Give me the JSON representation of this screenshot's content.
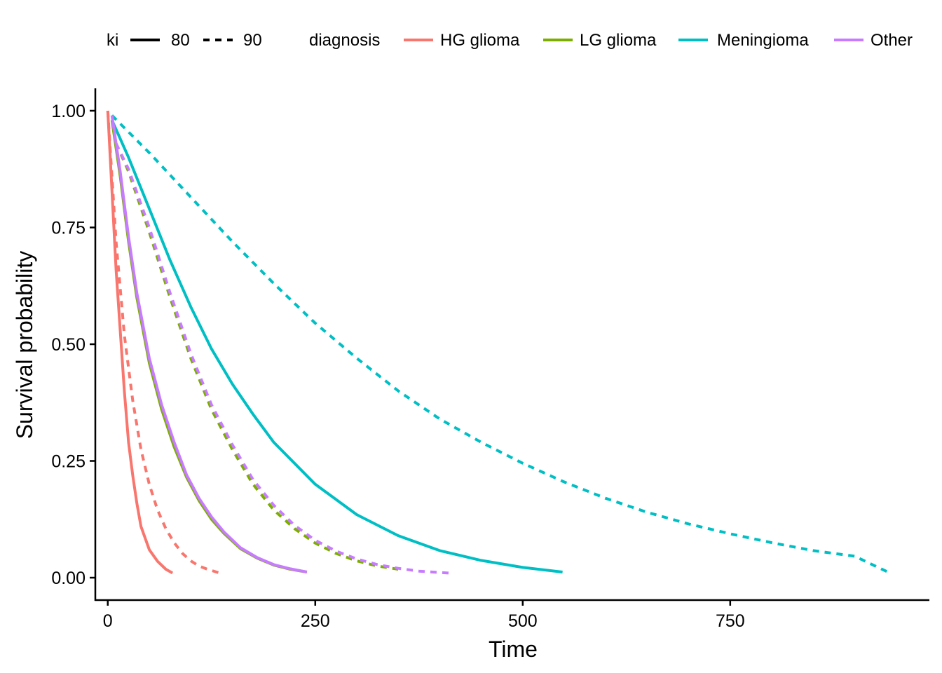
{
  "chart_data": {
    "type": "line",
    "xlabel": "Time",
    "ylabel": "Survival probability",
    "xlim": [
      -15,
      990
    ],
    "ylim": [
      -0.048,
      1.048
    ],
    "x_ticks": [
      0,
      250,
      500,
      750
    ],
    "x_tick_labels": [
      "0",
      "250",
      "500",
      "750"
    ],
    "y_ticks": [
      0,
      0.25,
      0.5,
      0.75,
      1
    ],
    "y_tick_labels": [
      "0.00",
      "0.25",
      "0.50",
      "0.75",
      "1.00"
    ],
    "grid": false,
    "legend_position": "top",
    "legend": {
      "ki": {
        "title": "ki",
        "items": [
          {
            "label": "80",
            "linetype": "solid"
          },
          {
            "label": "90",
            "linetype": "dashed"
          }
        ]
      },
      "diagnosis": {
        "title": "diagnosis",
        "items": [
          {
            "label": "HG glioma",
            "color": "#F8766D"
          },
          {
            "label": "LG glioma",
            "color": "#7CAE00"
          },
          {
            "label": "Meningioma",
            "color": "#00BFC4"
          },
          {
            "label": "Other",
            "color": "#C77CFF"
          }
        ]
      }
    },
    "series": [
      {
        "diagnosis": "HG glioma",
        "ki": "80",
        "color": "#F8766D",
        "linetype": "solid",
        "x": [
          0,
          5,
          10,
          15,
          20,
          25,
          30,
          35,
          40,
          50,
          60,
          70,
          78
        ],
        "y": [
          1.0,
          0.83,
          0.66,
          0.53,
          0.4,
          0.29,
          0.22,
          0.16,
          0.11,
          0.06,
          0.035,
          0.018,
          0.01
        ]
      },
      {
        "diagnosis": "HG glioma",
        "ki": "90",
        "color": "#F8766D",
        "linetype": "dashed",
        "x": [
          0,
          10,
          20,
          30,
          40,
          50,
          60,
          70,
          80,
          90,
          100,
          110,
          120,
          135
        ],
        "y": [
          1.0,
          0.72,
          0.52,
          0.38,
          0.275,
          0.2,
          0.145,
          0.105,
          0.075,
          0.052,
          0.036,
          0.025,
          0.018,
          0.01
        ]
      },
      {
        "diagnosis": "LG glioma",
        "ki": "80",
        "color": "#7CAE00",
        "linetype": "solid",
        "x": [
          5,
          15,
          25,
          35,
          50,
          65,
          80,
          95,
          110,
          125,
          140,
          160,
          180,
          200,
          220,
          240
        ],
        "y": [
          0.98,
          0.86,
          0.72,
          0.6,
          0.46,
          0.36,
          0.28,
          0.215,
          0.165,
          0.125,
          0.095,
          0.062,
          0.042,
          0.027,
          0.018,
          0.012
        ]
      },
      {
        "diagnosis": "LG glioma",
        "ki": "90",
        "color": "#7CAE00",
        "linetype": "dashed",
        "x": [
          10,
          25,
          50,
          75,
          100,
          125,
          150,
          175,
          200,
          225,
          250,
          275,
          300,
          325,
          350
        ],
        "y": [
          0.93,
          0.87,
          0.74,
          0.6,
          0.47,
          0.36,
          0.275,
          0.2,
          0.145,
          0.105,
          0.074,
          0.052,
          0.036,
          0.025,
          0.018
        ]
      },
      {
        "diagnosis": "Meningioma",
        "ki": "80",
        "color": "#00BFC4",
        "linetype": "solid",
        "x": [
          5,
          25,
          50,
          75,
          100,
          125,
          150,
          175,
          200,
          250,
          300,
          350,
          400,
          450,
          500,
          548
        ],
        "y": [
          0.98,
          0.9,
          0.79,
          0.68,
          0.58,
          0.49,
          0.415,
          0.35,
          0.29,
          0.2,
          0.135,
          0.09,
          0.058,
          0.037,
          0.022,
          0.012
        ]
      },
      {
        "diagnosis": "Meningioma",
        "ki": "90",
        "color": "#00BFC4",
        "linetype": "dashed",
        "x": [
          5,
          50,
          100,
          150,
          200,
          250,
          300,
          350,
          400,
          450,
          500,
          550,
          600,
          650,
          700,
          750,
          800,
          850,
          900,
          940
        ],
        "y": [
          0.99,
          0.91,
          0.815,
          0.72,
          0.63,
          0.545,
          0.47,
          0.4,
          0.34,
          0.29,
          0.245,
          0.205,
          0.17,
          0.14,
          0.115,
          0.094,
          0.075,
          0.058,
          0.046,
          0.012
        ]
      },
      {
        "diagnosis": "Other",
        "ki": "80",
        "color": "#C77CFF",
        "linetype": "solid",
        "x": [
          5,
          15,
          25,
          35,
          50,
          65,
          80,
          95,
          110,
          125,
          140,
          160,
          180,
          200,
          220,
          240
        ],
        "y": [
          0.99,
          0.87,
          0.73,
          0.61,
          0.47,
          0.37,
          0.29,
          0.22,
          0.17,
          0.13,
          0.098,
          0.064,
          0.043,
          0.028,
          0.019,
          0.012
        ]
      },
      {
        "diagnosis": "Other",
        "ki": "90",
        "color": "#C77CFF",
        "linetype": "dashed",
        "x": [
          10,
          25,
          50,
          75,
          100,
          125,
          150,
          175,
          200,
          225,
          250,
          275,
          300,
          325,
          350,
          375,
          400,
          412
        ],
        "y": [
          0.93,
          0.875,
          0.75,
          0.61,
          0.48,
          0.37,
          0.285,
          0.21,
          0.155,
          0.112,
          0.08,
          0.057,
          0.04,
          0.028,
          0.02,
          0.014,
          0.011,
          0.01
        ]
      }
    ]
  }
}
